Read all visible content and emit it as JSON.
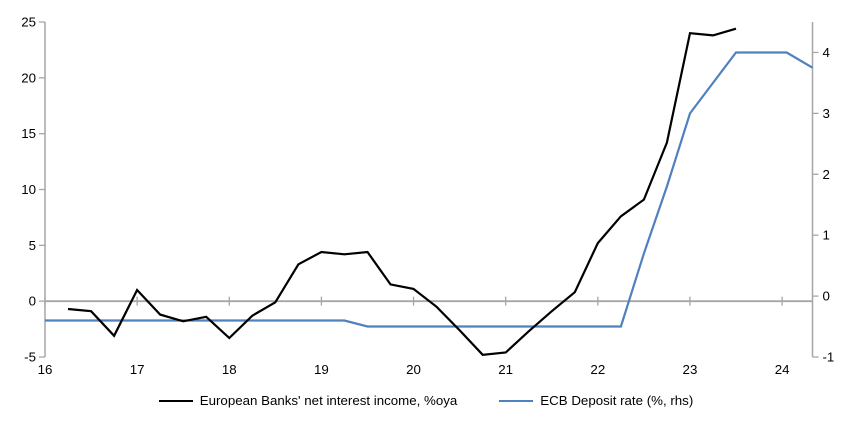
{
  "chart_data": {
    "type": "line",
    "title": "",
    "grid": "off",
    "legend_position": "bottom",
    "legend": [
      {
        "label": "European Banks' net interest income, %oya",
        "color": "#000000"
      },
      {
        "label": "ECB Deposit rate (%, rhs)",
        "color": "#4f81bd"
      }
    ],
    "x_axis": {
      "label": "",
      "range": [
        16,
        24.33
      ],
      "ticks": [
        16,
        17,
        18,
        19,
        20,
        21,
        22,
        23,
        24
      ],
      "tick_labels": [
        "16",
        "17",
        "18",
        "19",
        "20",
        "21",
        "22",
        "23",
        "24"
      ]
    },
    "y_axis_left": {
      "label": "",
      "range": [
        -5,
        25
      ],
      "ticks": [
        -5,
        0,
        5,
        10,
        15,
        20,
        25
      ],
      "tick_labels": [
        "-5",
        "0",
        "5",
        "10",
        "15",
        "20",
        "25"
      ]
    },
    "y_axis_right": {
      "label": "",
      "range": [
        -1,
        4.5
      ],
      "ticks": [
        -1,
        0,
        1,
        2,
        3,
        4
      ],
      "tick_labels": [
        "-1",
        "0",
        "1",
        "2",
        "3",
        "4"
      ]
    },
    "zero_line": true,
    "axis_color": "#a6a6a6",
    "series": [
      {
        "name": "ECB Deposit rate (%, rhs)",
        "axis": "right",
        "color": "#4f81bd",
        "width": 2.2,
        "points": [
          [
            16.0,
            -0.4
          ],
          [
            16.25,
            -0.4
          ],
          [
            16.5,
            -0.4
          ],
          [
            16.75,
            -0.4
          ],
          [
            17.0,
            -0.4
          ],
          [
            17.25,
            -0.4
          ],
          [
            17.5,
            -0.4
          ],
          [
            17.75,
            -0.4
          ],
          [
            18.0,
            -0.4
          ],
          [
            18.25,
            -0.4
          ],
          [
            18.5,
            -0.4
          ],
          [
            18.75,
            -0.4
          ],
          [
            19.0,
            -0.4
          ],
          [
            19.25,
            -0.4
          ],
          [
            19.5,
            -0.5
          ],
          [
            19.75,
            -0.5
          ],
          [
            20.0,
            -0.5
          ],
          [
            20.25,
            -0.5
          ],
          [
            20.5,
            -0.5
          ],
          [
            20.75,
            -0.5
          ],
          [
            21.0,
            -0.5
          ],
          [
            21.25,
            -0.5
          ],
          [
            21.5,
            -0.5
          ],
          [
            21.75,
            -0.5
          ],
          [
            22.0,
            -0.5
          ],
          [
            22.25,
            -0.5
          ],
          [
            22.5,
            0.7
          ],
          [
            22.75,
            1.8
          ],
          [
            23.0,
            3.0
          ],
          [
            23.25,
            3.5
          ],
          [
            23.5,
            4.0
          ],
          [
            23.75,
            4.0
          ],
          [
            24.05,
            4.0
          ],
          [
            24.33,
            3.75
          ]
        ]
      },
      {
        "name": "European Banks' net interest income, %oya",
        "axis": "left",
        "color": "#000000",
        "width": 2.2,
        "points": [
          [
            16.25,
            -0.7
          ],
          [
            16.5,
            -0.9
          ],
          [
            16.75,
            -3.1
          ],
          [
            17.0,
            1.0
          ],
          [
            17.25,
            -1.2
          ],
          [
            17.5,
            -1.8
          ],
          [
            17.75,
            -1.4
          ],
          [
            18.0,
            -3.3
          ],
          [
            18.25,
            -1.3
          ],
          [
            18.5,
            -0.1
          ],
          [
            18.75,
            3.3
          ],
          [
            19.0,
            4.4
          ],
          [
            19.25,
            4.2
          ],
          [
            19.5,
            4.4
          ],
          [
            19.75,
            1.5
          ],
          [
            20.0,
            1.1
          ],
          [
            20.25,
            -0.5
          ],
          [
            20.5,
            -2.6
          ],
          [
            20.75,
            -4.8
          ],
          [
            21.0,
            -4.6
          ],
          [
            21.25,
            -2.7
          ],
          [
            21.5,
            -0.9
          ],
          [
            21.75,
            0.8
          ],
          [
            22.0,
            5.2
          ],
          [
            22.25,
            7.6
          ],
          [
            22.5,
            9.1
          ],
          [
            22.75,
            14.2
          ],
          [
            23.0,
            24.0
          ],
          [
            23.25,
            23.8
          ],
          [
            23.5,
            24.4
          ]
        ]
      }
    ]
  }
}
